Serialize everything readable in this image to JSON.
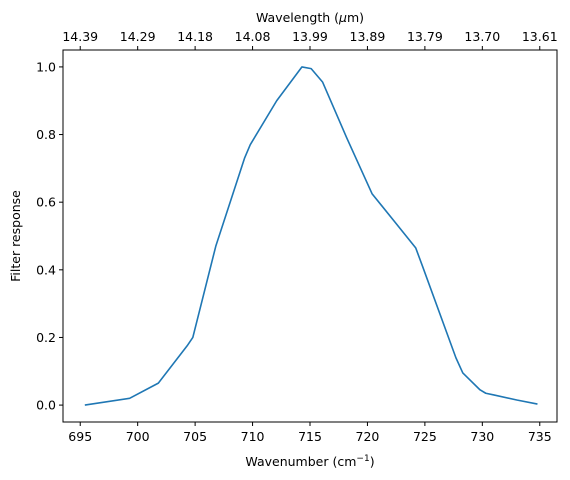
{
  "chart_data": {
    "type": "line",
    "xlabel": "Wavenumber (cm",
    "xlabel_sup": "−1",
    "xlabel_suffix": ")",
    "ylabel": "Filter response",
    "top_xlabel_prefix": "Wavelength (",
    "top_xlabel_mu": "μ",
    "top_xlabel_suffix": "m)",
    "xlim": [
      693.5,
      736.5
    ],
    "ylim": [
      -0.05,
      1.05
    ],
    "xticks": [
      695,
      700,
      705,
      710,
      715,
      720,
      725,
      730,
      735
    ],
    "xtick_labels": [
      "695",
      "700",
      "705",
      "710",
      "715",
      "720",
      "725",
      "730",
      "735"
    ],
    "yticks": [
      0.0,
      0.2,
      0.4,
      0.6,
      0.8,
      1.0
    ],
    "ytick_labels": [
      "0.0",
      "0.2",
      "0.4",
      "0.6",
      "0.8",
      "1.0"
    ],
    "top_ticks": [
      {
        "at": 695,
        "label": "14.39"
      },
      {
        "at": 700,
        "label": "14.29"
      },
      {
        "at": 705,
        "label": "14.18"
      },
      {
        "at": 710,
        "label": "14.08"
      },
      {
        "at": 715,
        "label": "13.99"
      },
      {
        "at": 720,
        "label": "13.89"
      },
      {
        "at": 725,
        "label": "13.79"
      },
      {
        "at": 730,
        "label": "13.70"
      },
      {
        "at": 735,
        "label": "13.61"
      }
    ],
    "grid": false,
    "series": [
      {
        "color": "#1f77b4",
        "x": [
          695.4,
          699.3,
          701.8,
          704.3,
          704.8,
          706.8,
          709.3,
          709.8,
          712.1,
          714.3,
          715.1,
          716.1,
          718.2,
          720.4,
          722.3,
          724.2,
          724.8,
          727.7,
          728.3,
          729.8,
          730.3,
          731.0,
          733.0,
          734.8
        ],
        "y": [
          0.0,
          0.02,
          0.065,
          0.175,
          0.2,
          0.47,
          0.73,
          0.77,
          0.9,
          1.0,
          0.995,
          0.955,
          0.79,
          0.625,
          0.545,
          0.465,
          0.41,
          0.14,
          0.095,
          0.045,
          0.035,
          0.03,
          0.015,
          0.003
        ]
      }
    ]
  }
}
